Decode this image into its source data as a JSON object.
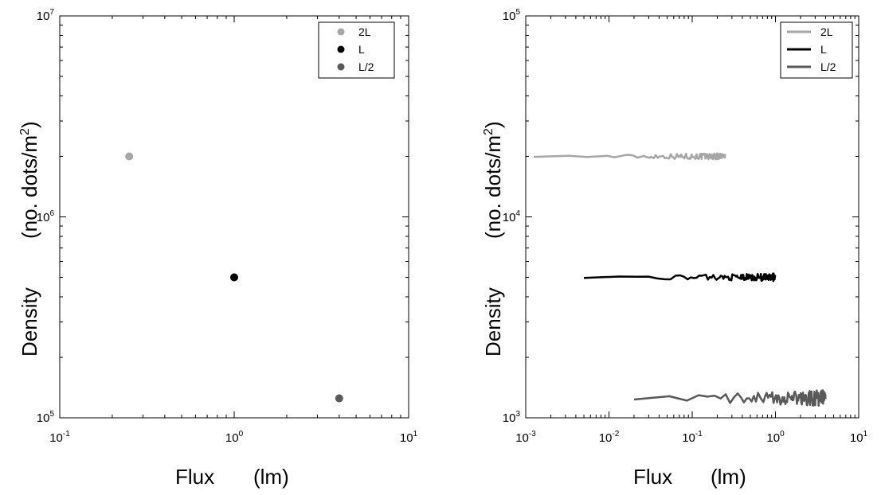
{
  "chart_data": [
    {
      "type": "scatter",
      "xscale": "log",
      "yscale": "log",
      "xlim": [
        0.1,
        10
      ],
      "ylim": [
        100000,
        10000000
      ],
      "x_ticks": [
        "10-1",
        "100",
        "101"
      ],
      "y_ticks": [
        "105",
        "106",
        "107"
      ],
      "xlabel": {
        "main": "Flux",
        "unit": "(lm)"
      },
      "ylabel": {
        "main": "Density",
        "unit_pre": "(no. dots/m",
        "unit_sup": "2",
        "unit_post": ")"
      },
      "legend": {
        "placement": "top-right"
      },
      "series": [
        {
          "name": "2L",
          "color": "#a6a6a6",
          "points": [
            [
              0.25,
              2000000
            ]
          ]
        },
        {
          "name": "L",
          "color": "#000000",
          "points": [
            [
              1.0,
              500000
            ]
          ]
        },
        {
          "name": "L/2",
          "color": "#595959",
          "points": [
            [
              4.0,
              125000
            ]
          ]
        }
      ]
    },
    {
      "type": "line",
      "xscale": "log",
      "yscale": "log",
      "xlim": [
        0.001,
        10
      ],
      "ylim": [
        1000,
        100000
      ],
      "x_ticks": [
        "10-3",
        "10-2",
        "10-1",
        "100",
        "101"
      ],
      "y_ticks": [
        "103",
        "104",
        "105"
      ],
      "xlabel": {
        "main": "Flux",
        "unit": "(lm)"
      },
      "ylabel": {
        "main": "Density",
        "unit_pre": "(no. dots/m",
        "unit_sup": "2",
        "unit_post": ")"
      },
      "legend": {
        "placement": "top-right"
      },
      "series": [
        {
          "name": "2L",
          "color": "#a6a6a6",
          "x_range": [
            0.00125,
            0.25
          ],
          "level": 20000,
          "noise": 0.012
        },
        {
          "name": "L",
          "color": "#000000",
          "x_range": [
            0.005,
            1.0
          ],
          "level": 5000,
          "noise": 0.014
        },
        {
          "name": "L/2",
          "color": "#595959",
          "x_range": [
            0.02,
            4.0
          ],
          "level": 1250,
          "noise": 0.03
        }
      ]
    }
  ]
}
